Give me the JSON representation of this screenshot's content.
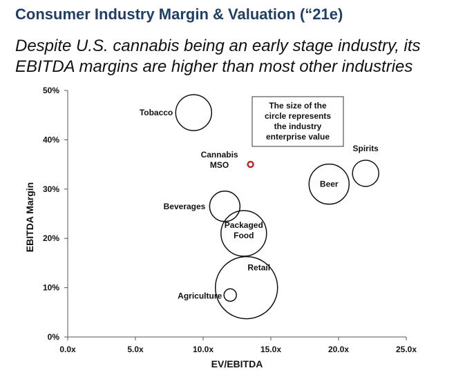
{
  "header": {
    "title": "Consumer Industry Margin & Valuation (“21e)",
    "subtitle_line1": "Despite U.S. cannabis being an early stage industry, its",
    "subtitle_line2": "EBITDA margins are higher than most other industries"
  },
  "chart_data": {
    "type": "scatter",
    "xlabel": "EV/EBITDA",
    "ylabel": "EBITDA Margin",
    "xlim": [
      0,
      25
    ],
    "ylim": [
      0,
      50
    ],
    "x_ticks": [
      "0.0x",
      "5.0x",
      "10.0x",
      "15.0x",
      "20.0x",
      "25.0x"
    ],
    "y_ticks": [
      "0%",
      "10%",
      "20%",
      "30%",
      "40%",
      "50%"
    ],
    "note": [
      "The size of the",
      "circle represents",
      "the industry",
      "enterprise value"
    ],
    "bubble_color": "#111111",
    "highlight_color": "#c0262d",
    "points": [
      {
        "label": "Tobacco",
        "x": 9.3,
        "y": 45.5,
        "size": 26
      },
      {
        "label": "Cannabis MSO",
        "label_lines": [
          "Cannabis",
          "MSO"
        ],
        "x": 13.5,
        "y": 35,
        "size": 4,
        "highlight": true
      },
      {
        "label": "Spirits",
        "x": 22.0,
        "y": 33.2,
        "size": 19
      },
      {
        "label": "Beer",
        "x": 19.3,
        "y": 31.0,
        "size": 29
      },
      {
        "label": "Beverages",
        "x": 11.6,
        "y": 26.5,
        "size": 22
      },
      {
        "label": "Packaged Food",
        "label_lines": [
          "Packaged",
          "Food"
        ],
        "x": 13.0,
        "y": 21.0,
        "size": 33
      },
      {
        "label": "Retail",
        "x": 13.2,
        "y": 10.0,
        "size": 45
      },
      {
        "label": "Agriculture",
        "x": 12.0,
        "y": 8.5,
        "size": 9
      }
    ]
  }
}
